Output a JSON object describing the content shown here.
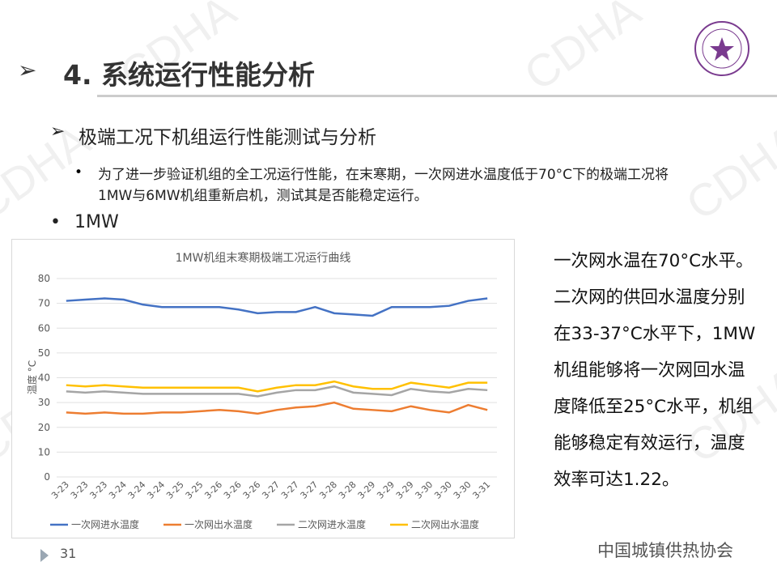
{
  "header": {
    "title": "4. 系统运行性能分析"
  },
  "watermark": "CDHA",
  "subheading": "极端工况下机组运行性能测试与分析",
  "bullet": "为了进一步验证机组的全工况运行性能，在末寒期，一次网进水温度低于70°C下的极端工况将1MW与6MW机组重新启机，测试其是否能稳定运行。",
  "section": "1MW",
  "side_text": "一次网水温在70°C水平。二次网的供回水温度分别在33-37°C水平下，1MW机组能够将一次网回水温度降低至25°C水平，机组能够稳定有效运行，温度效率可达1.22。",
  "page_number": "31",
  "footer": "中国城镇供热协会",
  "chart_data": {
    "type": "line",
    "title": "1MW机组末寒期极端工况运行曲线",
    "y_label": "温度 °C",
    "categories": [
      "3-23",
      "3-23",
      "3-23",
      "3-24",
      "3-24",
      "3-24",
      "3-25",
      "3-25",
      "3-26",
      "3-26",
      "3-26",
      "3-27",
      "3-27",
      "3-27",
      "3-28",
      "3-28",
      "3-29",
      "3-29",
      "3-29",
      "3-30",
      "3-30",
      "3-30",
      "3-31"
    ],
    "series": [
      {
        "name": "一次网进水温度",
        "color": "#4472c4",
        "values": [
          71,
          71.5,
          72,
          71.5,
          69.5,
          68.5,
          68.5,
          68.5,
          68.5,
          67.5,
          66,
          66.5,
          66.5,
          68.5,
          66,
          65.5,
          65,
          68.5,
          68.5,
          68.5,
          69,
          71,
          72
        ]
      },
      {
        "name": "一次网出水温度",
        "color": "#ed7d31",
        "values": [
          26,
          25.5,
          26,
          25.5,
          25.5,
          26,
          26,
          26.5,
          27,
          26.5,
          25.5,
          27,
          28,
          28.5,
          30,
          27.5,
          27,
          26.5,
          28.5,
          27,
          26,
          29,
          27
        ]
      },
      {
        "name": "二次网进水温度",
        "color": "#a5a5a5",
        "values": [
          34.5,
          34,
          34.5,
          34,
          33.5,
          33.5,
          33.5,
          33.5,
          33.5,
          33.5,
          32.5,
          34,
          35,
          35,
          36.5,
          34,
          33.5,
          33,
          35.5,
          34.5,
          34,
          35.5,
          35
        ]
      },
      {
        "name": "二次网出水温度",
        "color": "#ffc000",
        "values": [
          37,
          36.5,
          37,
          36.5,
          36,
          36,
          36,
          36,
          36,
          36,
          34.5,
          36,
          37,
          37,
          38.5,
          36.5,
          35.5,
          35.5,
          38,
          37,
          36,
          38,
          38
        ]
      }
    ],
    "ylim": [
      0,
      80
    ],
    "yticks": [
      0,
      10,
      20,
      30,
      40,
      50,
      60,
      70,
      80
    ],
    "grid": true,
    "legend": "bottom"
  }
}
